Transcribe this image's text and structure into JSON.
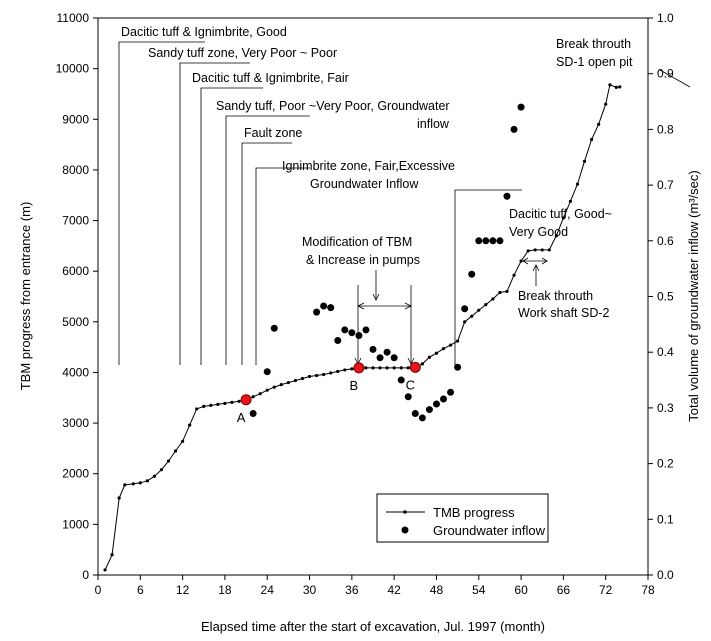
{
  "chart_data": {
    "type": "line",
    "xlabel": "Elapsed time after the start of excavation, Jul. 1997 (month)",
    "ylabel_left": "TBM progress from entrance (m)",
    "ylabel_right": "Total volume of groundwater inflow (m³/sec)",
    "xlim": [
      0,
      78
    ],
    "ylim_left": [
      0,
      11000
    ],
    "ylim_right": [
      0,
      1.0
    ],
    "xticks": [
      0,
      6,
      12,
      18,
      24,
      30,
      36,
      42,
      48,
      54,
      60,
      66,
      72,
      78
    ],
    "yticks_left": [
      0,
      1000,
      2000,
      3000,
      4000,
      5000,
      6000,
      7000,
      8000,
      9000,
      10000,
      11000
    ],
    "yticks_right": [
      0.0,
      0.1,
      0.2,
      0.3,
      0.4,
      0.5,
      0.6,
      0.7,
      0.8,
      0.9,
      1.0
    ],
    "grid": false,
    "legend_position": "bottom-right",
    "series": [
      {
        "name": "TMB progress",
        "axis": "left",
        "color": "#000000",
        "points": [
          [
            1,
            100
          ],
          [
            2,
            400
          ],
          [
            3,
            1520
          ],
          [
            3.8,
            1780
          ],
          [
            5,
            1800
          ],
          [
            6,
            1820
          ],
          [
            7,
            1860
          ],
          [
            8,
            1950
          ],
          [
            9,
            2080
          ],
          [
            10,
            2250
          ],
          [
            11,
            2450
          ],
          [
            12,
            2640
          ],
          [
            13,
            2960
          ],
          [
            14,
            3280
          ],
          [
            15,
            3330
          ],
          [
            16,
            3350
          ],
          [
            17,
            3370
          ],
          [
            18,
            3390
          ],
          [
            19,
            3410
          ],
          [
            20,
            3430
          ],
          [
            21,
            3460
          ],
          [
            22,
            3520
          ],
          [
            23,
            3580
          ],
          [
            24,
            3650
          ],
          [
            25,
            3710
          ],
          [
            26,
            3760
          ],
          [
            27,
            3800
          ],
          [
            28,
            3840
          ],
          [
            29,
            3880
          ],
          [
            30,
            3920
          ],
          [
            31,
            3940
          ],
          [
            32,
            3960
          ],
          [
            33,
            3990
          ],
          [
            34,
            4020
          ],
          [
            35,
            4050
          ],
          [
            36,
            4070
          ],
          [
            37,
            4090
          ],
          [
            38,
            4090
          ],
          [
            39,
            4090
          ],
          [
            40,
            4090
          ],
          [
            41,
            4090
          ],
          [
            42,
            4090
          ],
          [
            43,
            4090
          ],
          [
            44,
            4090
          ],
          [
            45,
            4100
          ],
          [
            46,
            4170
          ],
          [
            47,
            4300
          ],
          [
            48,
            4380
          ],
          [
            49,
            4470
          ],
          [
            50,
            4540
          ],
          [
            51,
            4620
          ],
          [
            52,
            5000
          ],
          [
            53,
            5110
          ],
          [
            54,
            5230
          ],
          [
            55,
            5340
          ],
          [
            56,
            5450
          ],
          [
            57,
            5580
          ],
          [
            58,
            5600
          ],
          [
            59,
            5920
          ],
          [
            60,
            6200
          ],
          [
            61,
            6400
          ],
          [
            62,
            6420
          ],
          [
            63,
            6420
          ],
          [
            64,
            6420
          ],
          [
            65,
            6700
          ],
          [
            66,
            7050
          ],
          [
            67,
            7380
          ],
          [
            68,
            7720
          ],
          [
            69,
            8170
          ],
          [
            70,
            8600
          ],
          [
            71,
            8900
          ],
          [
            72,
            9300
          ],
          [
            72.6,
            9680
          ],
          [
            73.5,
            9630
          ],
          [
            74,
            9640
          ]
        ]
      },
      {
        "name": "Groundwater inflow",
        "axis": "right",
        "color": "#000000",
        "points": [
          [
            22,
            0.29
          ],
          [
            24,
            0.365
          ],
          [
            25,
            0.443
          ],
          [
            31,
            0.472
          ],
          [
            32,
            0.483
          ],
          [
            33,
            0.48
          ],
          [
            34,
            0.421
          ],
          [
            35,
            0.44
          ],
          [
            36,
            0.435
          ],
          [
            37,
            0.43
          ],
          [
            38,
            0.44
          ],
          [
            39,
            0.405
          ],
          [
            40,
            0.39
          ],
          [
            41,
            0.4
          ],
          [
            42,
            0.39
          ],
          [
            43,
            0.35
          ],
          [
            44,
            0.32
          ],
          [
            45,
            0.29
          ],
          [
            46,
            0.282
          ],
          [
            47,
            0.297
          ],
          [
            48,
            0.307
          ],
          [
            49,
            0.316
          ],
          [
            50,
            0.328
          ],
          [
            51,
            0.373
          ],
          [
            52,
            0.478
          ],
          [
            53,
            0.54
          ],
          [
            54,
            0.6
          ],
          [
            55,
            0.6
          ],
          [
            56,
            0.6
          ],
          [
            57,
            0.6
          ],
          [
            58,
            0.68
          ],
          [
            59,
            0.8
          ],
          [
            60,
            0.84
          ]
        ]
      }
    ],
    "marked_points": [
      {
        "label": "A",
        "x": 21,
        "y": 3460
      },
      {
        "label": "B",
        "x": 37,
        "y": 4090
      },
      {
        "label": "C",
        "x": 45,
        "y": 4100
      }
    ],
    "annotations": [
      {
        "text": "Dacitic tuff & Ignimbrite, Good",
        "x": 3
      },
      {
        "text": "Sandy tuff zone, Very Poor ~ Poor",
        "x": 11
      },
      {
        "text": "Dacitic tuff & Ignimbrite, Fair",
        "x": 15
      },
      {
        "text": "Sandy tuff, Poor ~Very Poor, Groundwater",
        "x": 18
      },
      {
        "text": "inflow"
      },
      {
        "text": "Fault zone",
        "x": 21
      },
      {
        "text": "Ignimbrite zone, Fair,Excessive",
        "x": 24
      },
      {
        "text": "Groundwater Inflow"
      },
      {
        "text": "Dacitic tuff, Good~",
        "x": 51
      },
      {
        "text": "Very Good"
      },
      {
        "text": "Modification of TBM"
      },
      {
        "text": "& Increase in pumps"
      },
      {
        "text": "Break throuth"
      },
      {
        "text": "SD-1 open pit"
      },
      {
        "text": "Break throuth"
      },
      {
        "text": "Work shaft SD-2"
      }
    ]
  }
}
